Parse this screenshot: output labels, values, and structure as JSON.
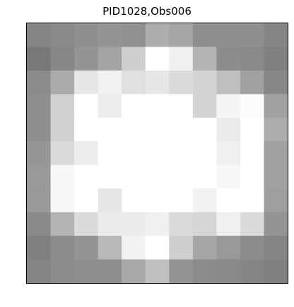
{
  "chart_data": {
    "type": "heatmap",
    "title": "PID1028,Obs006",
    "xlabel": "",
    "ylabel": "",
    "colormap": "grayscale",
    "rows": 11,
    "cols": 11,
    "values": [
      [
        0.52,
        0.54,
        0.56,
        0.58,
        0.57,
        0.68,
        0.65,
        0.56,
        0.56,
        0.56,
        0.52
      ],
      [
        0.47,
        0.53,
        0.58,
        0.64,
        0.81,
        1.0,
        0.94,
        0.7,
        0.55,
        0.54,
        0.5
      ],
      [
        0.55,
        0.67,
        0.9,
        0.95,
        0.88,
        0.9,
        0.86,
        0.83,
        0.75,
        0.63,
        0.53
      ],
      [
        0.56,
        0.82,
        1.0,
        0.93,
        1.0,
        1.0,
        1.0,
        0.83,
        0.96,
        0.99,
        0.63
      ],
      [
        0.56,
        0.82,
        1.0,
        1.0,
        1.0,
        1.0,
        1.0,
        1.0,
        0.92,
        1.0,
        0.68
      ],
      [
        0.59,
        0.86,
        0.93,
        1.0,
        1.0,
        1.0,
        1.0,
        1.0,
        0.94,
        1.0,
        0.63
      ],
      [
        0.6,
        0.97,
        1.0,
        1.0,
        1.0,
        1.0,
        1.0,
        1.0,
        0.97,
        1.0,
        0.63
      ],
      [
        0.6,
        0.97,
        1.0,
        0.9,
        1.0,
        1.0,
        1.0,
        0.95,
        1.0,
        1.0,
        0.62
      ],
      [
        0.54,
        0.7,
        0.86,
        0.92,
        0.92,
        0.94,
        0.86,
        0.84,
        0.94,
        0.86,
        0.58
      ],
      [
        0.5,
        0.55,
        0.58,
        0.72,
        0.95,
        1.0,
        0.81,
        0.65,
        0.6,
        0.55,
        0.52
      ],
      [
        0.52,
        0.55,
        0.56,
        0.56,
        0.66,
        0.75,
        0.58,
        0.55,
        0.54,
        0.52,
        0.5
      ]
    ]
  }
}
